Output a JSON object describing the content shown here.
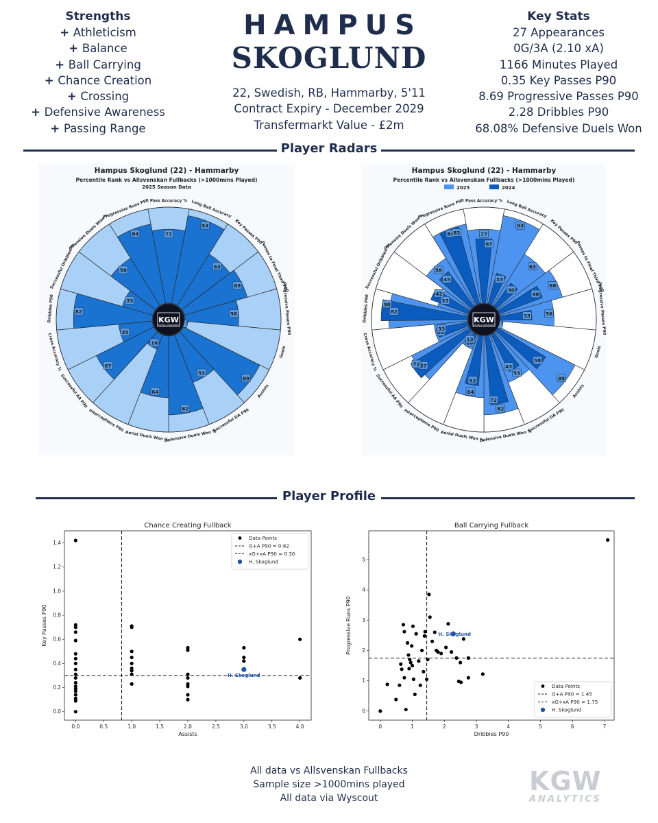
{
  "header": {
    "first_name": "HAMPUS",
    "last_name": "SKOGLUND",
    "info_lines": [
      "22, Swedish, RB, Hammarby, 5'11",
      "Contract Expiry - December 2029",
      "Transfermarkt Value - £2m"
    ]
  },
  "strengths": {
    "title": "Strengths",
    "items": [
      "Athleticism",
      "Balance",
      "Ball Carrying",
      "Chance Creation",
      "Crossing",
      "Defensive Awareness",
      "Passing Range"
    ]
  },
  "key_stats": {
    "title": "Key Stats",
    "items": [
      "27 Appearances",
      "0G/3A (2.10 xA)",
      "1166 Minutes Played",
      "0.35 Key Passes P90",
      "8.69 Progressive Passes P90",
      "2.28 Dribbles P90",
      "68.08% Defensive Duels Won"
    ]
  },
  "sections": {
    "radars": "Player Radars",
    "profile": "Player Profile"
  },
  "logo": {
    "text": "KGW",
    "sub": "FOOTBALL CONSULTANCY"
  },
  "colors": {
    "navy": "#1f2d4d",
    "bar": "#1a73d0",
    "bar_light": "#a9d0f7",
    "bar_2025": "#4d94f0",
    "bar_2024": "#0a5cbf"
  },
  "chart_data": [
    {
      "type": "radar",
      "title": "Hampus Skoglund (22) - Hammarby",
      "subtitle": "Percentile Rank vs Allsvenskan Fullbacks (>1000mins Played)",
      "subtitle2": "2025 Season Data",
      "categories": [
        "Pass Accuracy %",
        "Long Ball Accuracy",
        "Key Passes P90",
        "Passes to Final Third P90",
        "Progressive Passes P90",
        "Goals",
        "Assists",
        "Successful DA P90",
        "Defensive Duels Won %",
        "Aerial Duels Won %",
        "Interceptions P90",
        "Successful AA P90",
        "Cross Accuracy %",
        "Dribbles P90",
        "Successful Dribbles %",
        "Offensive Duels Won %",
        "Progressive Runs P90"
      ],
      "values": [
        77,
        93,
        63,
        68,
        56,
        3,
        89,
        53,
        82,
        64,
        16,
        67,
        35,
        82,
        33,
        58,
        84
      ],
      "range": [
        0,
        100
      ]
    },
    {
      "type": "radar",
      "title": "Hampus Skoglund (22) - Hammarby",
      "subtitle": "Percentile Rank vs Allsvenskan Fullbacks (>1000mins Played)",
      "categories": [
        "Pass Accuracy %",
        "Long Ball Accuracy",
        "Key Passes P90",
        "Passes to Final Third P90",
        "Progressive Passes P90",
        "Goals",
        "Assists",
        "Successful DA P90",
        "Defensive Duels Won %",
        "Aerial Duels Won %",
        "Interceptions P90",
        "Successful AA P90",
        "Cross Accuracy %",
        "Dribbles P90",
        "Successful Dribbles %",
        "Offensive Duels Won %",
        "Progressive Runs P90"
      ],
      "series": [
        {
          "name": "2025",
          "values": [
            77,
            93,
            63,
            68,
            56,
            3,
            89,
            53,
            82,
            64,
            16,
            67,
            35,
            82,
            33,
            58,
            84
          ]
        },
        {
          "name": "2024",
          "values": [
            67,
            33,
            30,
            48,
            33,
            3,
            58,
            43,
            72,
            52,
            13,
            72,
            33,
            90,
            42,
            45,
            83
          ]
        }
      ],
      "range": [
        0,
        100
      ]
    },
    {
      "type": "scatter",
      "title": "Chance Creating Fullback",
      "xlabel": "Assists",
      "ylabel": "Key Passes P90",
      "xlim": [
        -0.2,
        4.2
      ],
      "ylim": [
        -0.07,
        1.5
      ],
      "xticks": [
        "0.0",
        "0.5",
        "1.0",
        "1.5",
        "2.0",
        "2.5",
        "3.0",
        "3.5",
        "4.0"
      ],
      "yticks": [
        "0.0",
        "0.2",
        "0.4",
        "0.6",
        "0.8",
        "1.0",
        "1.2",
        "1.4"
      ],
      "points": [
        [
          0,
          1.42
        ],
        [
          0,
          0.72
        ],
        [
          0,
          0.7
        ],
        [
          0,
          0.66
        ],
        [
          0,
          0.59
        ],
        [
          0,
          0.48
        ],
        [
          0,
          0.44
        ],
        [
          0,
          0.4
        ],
        [
          0,
          0.35
        ],
        [
          0,
          0.31
        ],
        [
          0,
          0.28
        ],
        [
          0,
          0.24
        ],
        [
          0,
          0.21
        ],
        [
          0,
          0.19
        ],
        [
          0,
          0.17
        ],
        [
          0,
          0.14
        ],
        [
          0,
          0.11
        ],
        [
          0,
          0.09
        ],
        [
          0,
          0.0
        ],
        [
          1,
          0.71
        ],
        [
          1,
          0.7
        ],
        [
          1,
          0.5
        ],
        [
          1,
          0.45
        ],
        [
          1,
          0.4
        ],
        [
          1,
          0.36
        ],
        [
          1,
          0.34
        ],
        [
          1,
          0.31
        ],
        [
          1,
          0.23
        ],
        [
          2,
          0.53
        ],
        [
          2,
          0.51
        ],
        [
          2,
          0.31
        ],
        [
          2,
          0.28
        ],
        [
          2,
          0.23
        ],
        [
          2,
          0.21
        ],
        [
          2,
          0.14
        ],
        [
          2,
          0.1
        ],
        [
          3,
          0.53
        ],
        [
          3,
          0.45
        ],
        [
          3,
          0.42
        ],
        [
          4,
          0.6
        ],
        [
          4,
          0.28
        ]
      ],
      "vline": 0.82,
      "hline": 0.3,
      "highlight": {
        "name": "H. Skoglund",
        "x": 3.0,
        "y": 0.35
      },
      "legend": [
        "Data Points",
        "G+A P90 = 0.82",
        "xG+xA P90 = 0.30",
        "H. Skoglund"
      ],
      "legend_loc": "top-right"
    },
    {
      "type": "scatter",
      "title": "Ball Carrying Fullback",
      "xlabel": "Dribbles P90",
      "ylabel": "Progressive Runs P90",
      "xlim": [
        -0.36,
        7.3
      ],
      "ylim": [
        -0.3,
        5.95
      ],
      "xticks": [
        "0",
        "1",
        "2",
        "3",
        "4",
        "5",
        "6",
        "7"
      ],
      "yticks": [
        "0",
        "1",
        "2",
        "3",
        "4",
        "5"
      ],
      "points": [
        [
          0,
          0.0
        ],
        [
          0.22,
          0.88
        ],
        [
          0.49,
          0.38
        ],
        [
          0.6,
          0.85
        ],
        [
          0.64,
          1.55
        ],
        [
          0.67,
          1.38
        ],
        [
          0.72,
          2.85
        ],
        [
          0.75,
          2.62
        ],
        [
          0.75,
          1.1
        ],
        [
          0.8,
          0.05
        ],
        [
          0.85,
          2.25
        ],
        [
          0.88,
          1.85
        ],
        [
          0.9,
          1.4
        ],
        [
          0.92,
          1.7
        ],
        [
          0.95,
          1.6
        ],
        [
          0.98,
          2.15
        ],
        [
          1.0,
          1.5
        ],
        [
          1.02,
          2.8
        ],
        [
          1.04,
          1.05
        ],
        [
          1.08,
          0.55
        ],
        [
          1.12,
          2.55
        ],
        [
          1.2,
          1.65
        ],
        [
          1.25,
          0.85
        ],
        [
          1.3,
          2.0
        ],
        [
          1.35,
          1.3
        ],
        [
          1.38,
          2.48
        ],
        [
          1.4,
          2.62
        ],
        [
          1.45,
          1.05
        ],
        [
          1.48,
          1.7
        ],
        [
          1.52,
          3.85
        ],
        [
          1.55,
          3.1
        ],
        [
          1.62,
          2.3
        ],
        [
          1.7,
          2.6
        ],
        [
          1.75,
          2.0
        ],
        [
          1.8,
          1.95
        ],
        [
          1.9,
          1.9
        ],
        [
          2.05,
          2.1
        ],
        [
          2.12,
          2.88
        ],
        [
          2.22,
          1.95
        ],
        [
          2.38,
          1.75
        ],
        [
          2.45,
          0.98
        ],
        [
          2.5,
          1.6
        ],
        [
          2.52,
          0.95
        ],
        [
          2.6,
          2.38
        ],
        [
          2.75,
          1.75
        ],
        [
          2.75,
          1.1
        ],
        [
          3.2,
          1.22
        ],
        [
          7.1,
          5.65
        ]
      ],
      "vline": 1.45,
      "hline": 1.75,
      "highlight": {
        "name": "H. Skoglund",
        "x": 2.28,
        "y": 2.55
      },
      "legend": [
        "Data Points",
        "G+A P90 = 1.45",
        "xG+xA P90 = 1.75",
        "H. Skoglund"
      ],
      "legend_loc": "bottom-right"
    }
  ],
  "footer": {
    "lines": [
      "All data vs Allsvenskan Fullbacks",
      "Sample size >1000mins played",
      "All data via Wyscout"
    ]
  },
  "watermark": {
    "big": "KGW",
    "small": "ANALYTICS"
  }
}
